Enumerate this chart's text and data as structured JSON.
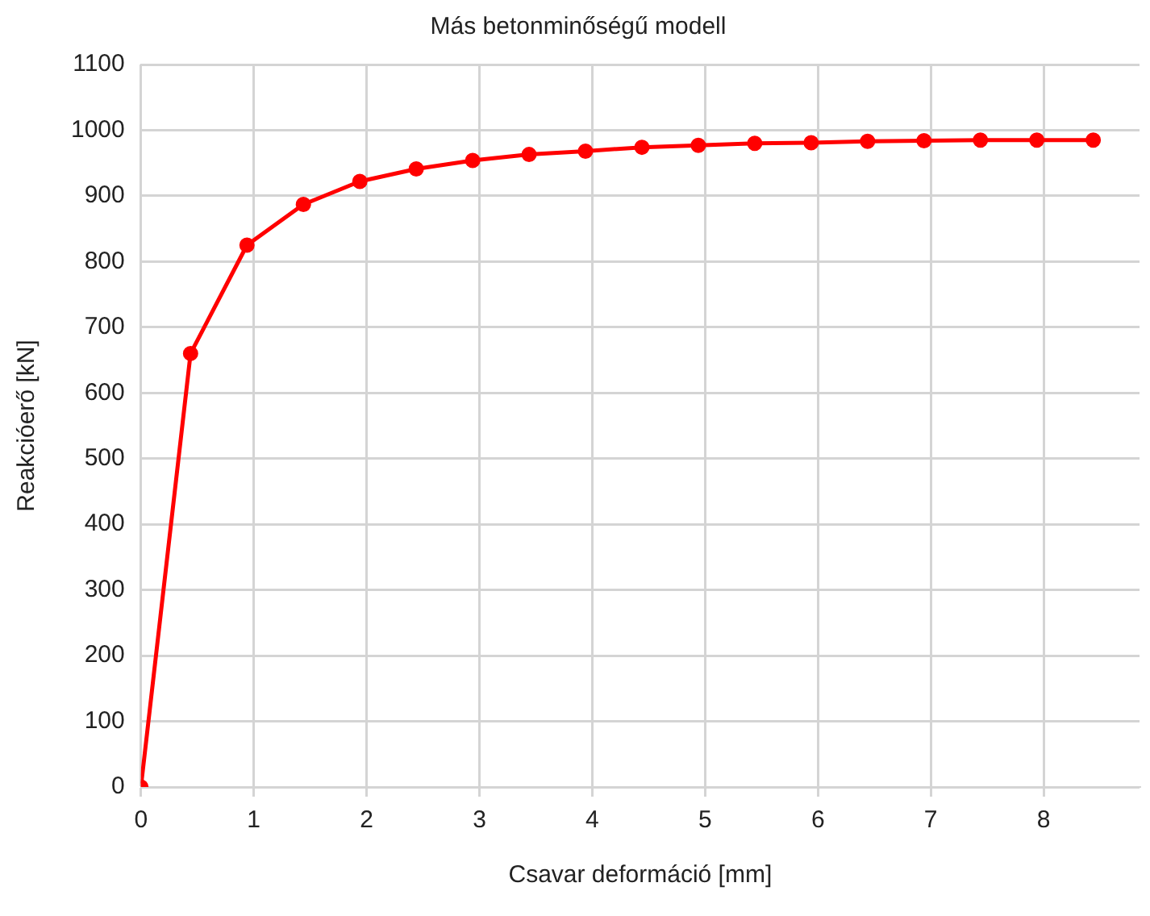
{
  "chart_data": {
    "type": "line",
    "title": "Más betonminőségű modell",
    "xlabel": "Csavar deformáció [mm]",
    "ylabel": "Reakcióerő [kN]",
    "xlim": [
      0,
      8.85
    ],
    "xticks": [
      0,
      1,
      2,
      3,
      4,
      5,
      6,
      7,
      8
    ],
    "ylim": [
      0,
      1100
    ],
    "yticks": [
      0,
      100,
      200,
      300,
      400,
      500,
      600,
      700,
      800,
      900,
      1000,
      1100
    ],
    "grid": true,
    "legend": false,
    "marker": "circle",
    "line_style": "solid",
    "series": [
      {
        "color": "#ff0000",
        "x": [
          0,
          0.44,
          0.94,
          1.44,
          1.94,
          2.44,
          2.94,
          3.44,
          3.94,
          4.44,
          4.94,
          5.44,
          5.94,
          6.44,
          6.94,
          7.44,
          7.94,
          8.44
        ],
        "values": [
          0,
          660,
          825,
          887,
          922,
          941,
          954,
          963,
          968,
          974,
          977,
          980,
          981,
          983,
          984,
          985,
          985,
          985
        ]
      }
    ]
  }
}
